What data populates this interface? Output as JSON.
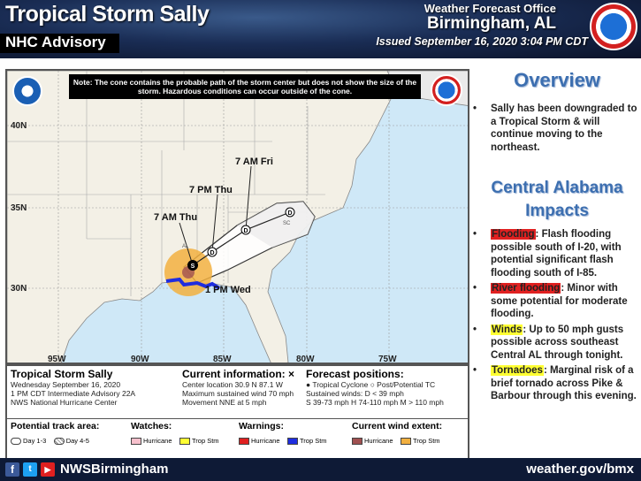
{
  "header": {
    "title": "Tropical Storm Sally",
    "subtitle": "NHC Advisory",
    "office_label": "Weather Forecast Office",
    "office_name": "Birmingham, AL",
    "issued": "Issued September 16, 2020 3:04 PM CDT"
  },
  "map": {
    "note": "Note: The cone contains the probable path of the storm center but does not show the size of the storm. Hazardous conditions can occur outside of the cone.",
    "lat_labels": [
      "40N",
      "35N",
      "30N"
    ],
    "lon_labels": [
      "95W",
      "90W",
      "85W",
      "80W",
      "75W"
    ],
    "forecast_labels": {
      "fri": "7 AM Fri",
      "thu_pm": "7 PM Thu",
      "thu_am": "7 AM Thu",
      "wed": "1 PM Wed"
    },
    "points": {
      "d": "D",
      "s": "S"
    },
    "states": {
      "al": "AL",
      "sc": "SC"
    }
  },
  "info": {
    "storm_name": "Tropical Storm Sally",
    "storm_lines": [
      "Wednesday September 16, 2020",
      "1 PM CDT Intermediate Advisory 22A",
      "NWS National Hurricane Center"
    ],
    "current_title": "Current information: ×",
    "current_lines": [
      "Center location 30.9 N 87.1 W",
      "Maximum sustained wind 70 mph",
      "Movement NNE at 5 mph"
    ],
    "forecast_title": "Forecast positions:",
    "forecast_lines": [
      "● Tropical Cyclone   ○ Post/Potential TC",
      "Sustained winds:           D < 39 mph",
      "S 39-73 mph   H 74-110 mph   M > 110 mph"
    ]
  },
  "legend": {
    "track_title": "Potential track area:",
    "track_items": [
      "Day 1-3",
      "Day 4-5"
    ],
    "watches_title": "Watches:",
    "watches_items": [
      "Hurricane",
      "Trop Stm"
    ],
    "warnings_title": "Warnings:",
    "warnings_items": [
      "Hurricane",
      "Trop Stm"
    ],
    "wind_title": "Current wind extent:",
    "wind_items": [
      "Hurricane",
      "Trop Stm"
    ]
  },
  "overview": {
    "title": "Overview",
    "bullets": [
      "Sally has been downgraded to a Tropical Storm & will continue moving to the northeast."
    ]
  },
  "impacts": {
    "title": "Central Alabama Impacts",
    "items": [
      {
        "tag": "Flooding",
        "text": ": Flash flooding possible south of I-20, with potential significant flash flooding south of I-85.",
        "color": "#e02020"
      },
      {
        "tag": "River flooding",
        "text": ": Minor with some potential for moderate flooding.",
        "color": "#e02020"
      },
      {
        "tag": "Winds",
        "text": ": Up to 50 mph gusts possible across southeast Central AL through tonight.",
        "color": "#ffff33"
      },
      {
        "tag": "Tornadoes",
        "text": ": Marginal risk of a brief tornado across Pike & Barbour through this evening.",
        "color": "#ffff33"
      }
    ]
  },
  "footer": {
    "handle": "NWSBirmingham",
    "website": "weather.gov/bmx"
  },
  "colors": {
    "hurricane_watch": "#f7c0cc",
    "trop_storm_watch": "#ffff33",
    "hurricane_warning": "#e02020",
    "trop_storm_warning": "#1f2de0",
    "hurricane_wind": "#a05050",
    "trop_storm_wind": "#f2b040"
  },
  "icons": {
    "facebook": "facebook-icon",
    "twitter": "twitter-icon",
    "youtube": "youtube-icon"
  }
}
